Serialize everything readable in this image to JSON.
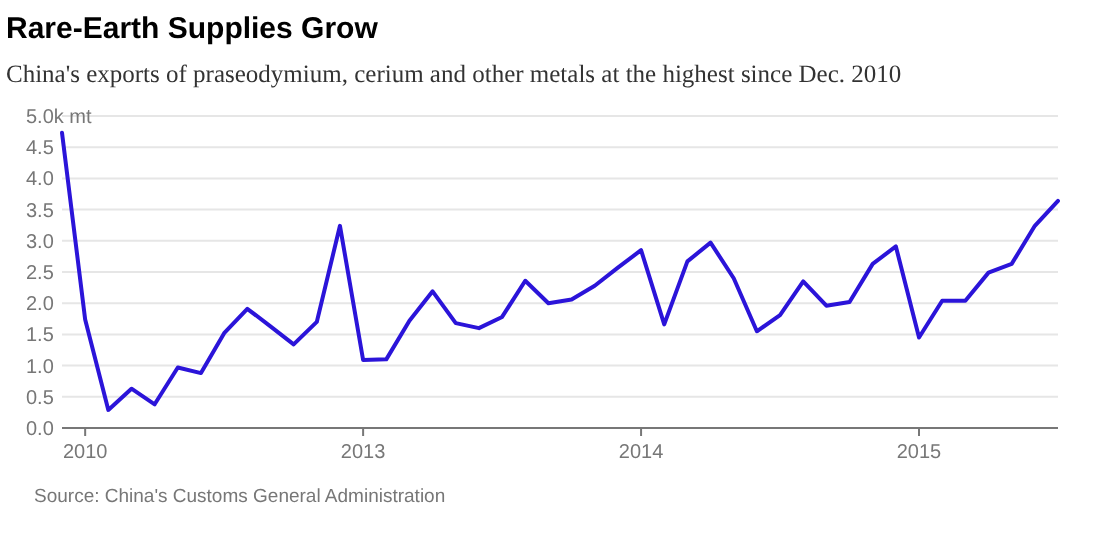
{
  "chart_data": {
    "type": "line",
    "title": "Rare-Earth Supplies Grow",
    "subtitle": "China's exports of praseodymium, cerium and other metals at the highest since Dec. 2010",
    "categories": [
      null,
      "2010",
      null,
      null,
      null,
      null,
      null,
      null,
      null,
      null,
      null,
      null,
      null,
      "2013",
      null,
      null,
      null,
      null,
      null,
      null,
      null,
      null,
      null,
      null,
      null,
      "2014",
      null,
      null,
      null,
      null,
      null,
      null,
      null,
      null,
      null,
      null,
      null,
      "2015",
      null,
      null,
      null,
      null,
      null,
      null
    ],
    "series": [
      {
        "color": "#2b14d9",
        "values": [
          4.73,
          1.74,
          0.29,
          0.63,
          0.38,
          0.97,
          0.88,
          1.52,
          1.91,
          1.63,
          1.34,
          1.7,
          3.24,
          1.09,
          1.1,
          1.72,
          2.19,
          1.68,
          1.6,
          1.78,
          2.36,
          2.0,
          2.06,
          2.28,
          2.57,
          2.85,
          1.66,
          2.67,
          2.97,
          2.4,
          1.55,
          1.81,
          2.35,
          1.96,
          2.02,
          2.63,
          2.91,
          1.45,
          2.04,
          2.04,
          2.49,
          2.63,
          3.24,
          3.64
        ]
      }
    ],
    "ylim": [
      0,
      5
    ],
    "yticks": [
      {
        "value": 0,
        "label": "0.0"
      },
      0.5,
      {
        "value": 1,
        "label": "1.0"
      },
      1.5,
      {
        "value": 2,
        "label": "2.0"
      },
      2.5,
      {
        "value": 3,
        "label": "3.0"
      },
      3.5,
      {
        "value": 4,
        "label": "4.0"
      },
      4.5,
      {
        "value": 5,
        "label": "5.0k mt"
      }
    ],
    "grid": "y",
    "marker": "none",
    "line_style": "solid",
    "annotations": [
      "Source: China's Customs General Administration"
    ]
  }
}
